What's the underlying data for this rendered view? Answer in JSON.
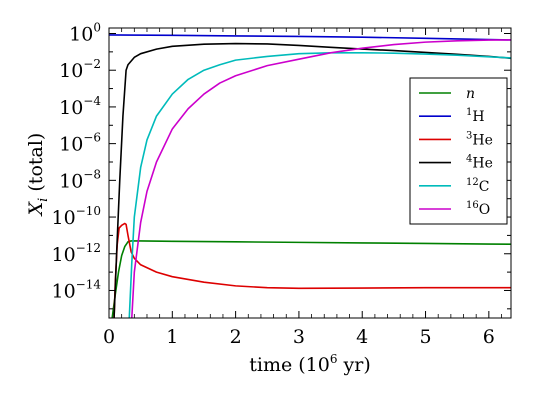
{
  "chart_data": {
    "type": "line",
    "title": "",
    "xlabel": "time (10^6 yr)",
    "ylabel": "X_i (total)",
    "xlim": [
      0,
      6.35
    ],
    "ylim_log10": [
      -15.5,
      0.3
    ],
    "yscale": "log",
    "grid": false,
    "legend_position": "right",
    "x_ticks": [
      0,
      1,
      2,
      3,
      4,
      5,
      6
    ],
    "y_tick_exponents": [
      0,
      -2,
      -4,
      -6,
      -8,
      -10,
      -12,
      -14
    ],
    "series": [
      {
        "name": "n",
        "color": "#008000",
        "points": [
          [
            0.05,
            -15.5
          ],
          [
            0.1,
            -14.2
          ],
          [
            0.15,
            -13.0
          ],
          [
            0.2,
            -12.1
          ],
          [
            0.25,
            -11.6
          ],
          [
            0.3,
            -11.35
          ],
          [
            0.35,
            -11.3
          ],
          [
            0.5,
            -11.3
          ],
          [
            1,
            -11.32
          ],
          [
            2,
            -11.35
          ],
          [
            3,
            -11.38
          ],
          [
            4,
            -11.41
          ],
          [
            5,
            -11.44
          ],
          [
            6,
            -11.47
          ],
          [
            6.35,
            -11.48
          ]
        ]
      },
      {
        "name": "1H",
        "color": "#0000cc",
        "points": [
          [
            0,
            -0.08
          ],
          [
            1,
            -0.1
          ],
          [
            2,
            -0.13
          ],
          [
            3,
            -0.16
          ],
          [
            4,
            -0.2
          ],
          [
            5,
            -0.26
          ],
          [
            6,
            -0.33
          ],
          [
            6.35,
            -0.35
          ]
        ]
      },
      {
        "name": "3He",
        "color": "#dd0000",
        "points": [
          [
            0.08,
            -15.5
          ],
          [
            0.1,
            -13.5
          ],
          [
            0.13,
            -11.5
          ],
          [
            0.16,
            -10.6
          ],
          [
            0.2,
            -10.45
          ],
          [
            0.25,
            -10.35
          ],
          [
            0.27,
            -10.4
          ],
          [
            0.3,
            -11.0
          ],
          [
            0.35,
            -11.9
          ],
          [
            0.4,
            -12.25
          ],
          [
            0.5,
            -12.6
          ],
          [
            0.75,
            -13.0
          ],
          [
            1,
            -13.25
          ],
          [
            1.5,
            -13.55
          ],
          [
            2,
            -13.75
          ],
          [
            2.5,
            -13.85
          ],
          [
            3,
            -13.88
          ],
          [
            4,
            -13.87
          ],
          [
            5,
            -13.85
          ],
          [
            6,
            -13.85
          ],
          [
            6.35,
            -13.85
          ]
        ]
      },
      {
        "name": "4He",
        "color": "#000000",
        "points": [
          [
            0.08,
            -15.5
          ],
          [
            0.12,
            -12.0
          ],
          [
            0.17,
            -8.0
          ],
          [
            0.22,
            -4.5
          ],
          [
            0.27,
            -2.0
          ],
          [
            0.3,
            -1.7
          ],
          [
            0.4,
            -1.3
          ],
          [
            0.5,
            -1.1
          ],
          [
            0.75,
            -0.85
          ],
          [
            1,
            -0.7
          ],
          [
            1.5,
            -0.58
          ],
          [
            2,
            -0.55
          ],
          [
            2.5,
            -0.57
          ],
          [
            3,
            -0.65
          ],
          [
            3.5,
            -0.75
          ],
          [
            4,
            -0.85
          ],
          [
            4.5,
            -0.93
          ],
          [
            5,
            -1.03
          ],
          [
            5.5,
            -1.13
          ],
          [
            6,
            -1.25
          ],
          [
            6.35,
            -1.35
          ]
        ]
      },
      {
        "name": "12C",
        "color": "#00bbbb",
        "points": [
          [
            0.32,
            -15.5
          ],
          [
            0.36,
            -12.5
          ],
          [
            0.4,
            -10.0
          ],
          [
            0.5,
            -7.3
          ],
          [
            0.6,
            -5.8
          ],
          [
            0.75,
            -4.5
          ],
          [
            1,
            -3.3
          ],
          [
            1.25,
            -2.5
          ],
          [
            1.5,
            -2.0
          ],
          [
            1.75,
            -1.7
          ],
          [
            2,
            -1.45
          ],
          [
            2.5,
            -1.25
          ],
          [
            3,
            -1.1
          ],
          [
            3.5,
            -1.05
          ],
          [
            4,
            -1.05
          ],
          [
            4.5,
            -1.07
          ],
          [
            5,
            -1.12
          ],
          [
            5.5,
            -1.18
          ],
          [
            6,
            -1.27
          ],
          [
            6.35,
            -1.33
          ]
        ]
      },
      {
        "name": "16O",
        "color": "#cc00cc",
        "points": [
          [
            0.36,
            -15.5
          ],
          [
            0.4,
            -13.0
          ],
          [
            0.5,
            -10.3
          ],
          [
            0.6,
            -8.6
          ],
          [
            0.75,
            -7.0
          ],
          [
            1,
            -5.2
          ],
          [
            1.25,
            -4.1
          ],
          [
            1.5,
            -3.3
          ],
          [
            1.75,
            -2.7
          ],
          [
            2,
            -2.3
          ],
          [
            2.5,
            -1.75
          ],
          [
            3,
            -1.4
          ],
          [
            3.5,
            -1.05
          ],
          [
            4,
            -0.8
          ],
          [
            4.5,
            -0.6
          ],
          [
            5,
            -0.47
          ],
          [
            5.5,
            -0.4
          ],
          [
            6,
            -0.36
          ],
          [
            6.35,
            -0.35
          ]
        ]
      }
    ]
  },
  "axis": {
    "ylabel_main": "X",
    "ylabel_sub": "i",
    "ylabel_rest": " (total)",
    "xlabel_pre": "time (10",
    "xlabel_exp": "6",
    "xlabel_post": " yr)",
    "tick_base": "10"
  },
  "legend": {
    "entries": [
      {
        "label": "n",
        "italic": true,
        "sup": ""
      },
      {
        "label": "H",
        "italic": false,
        "sup": "1"
      },
      {
        "label": "He",
        "italic": false,
        "sup": "3"
      },
      {
        "label": "He",
        "italic": false,
        "sup": "4"
      },
      {
        "label": "C",
        "italic": false,
        "sup": "12"
      },
      {
        "label": "O",
        "italic": false,
        "sup": "16"
      }
    ]
  }
}
